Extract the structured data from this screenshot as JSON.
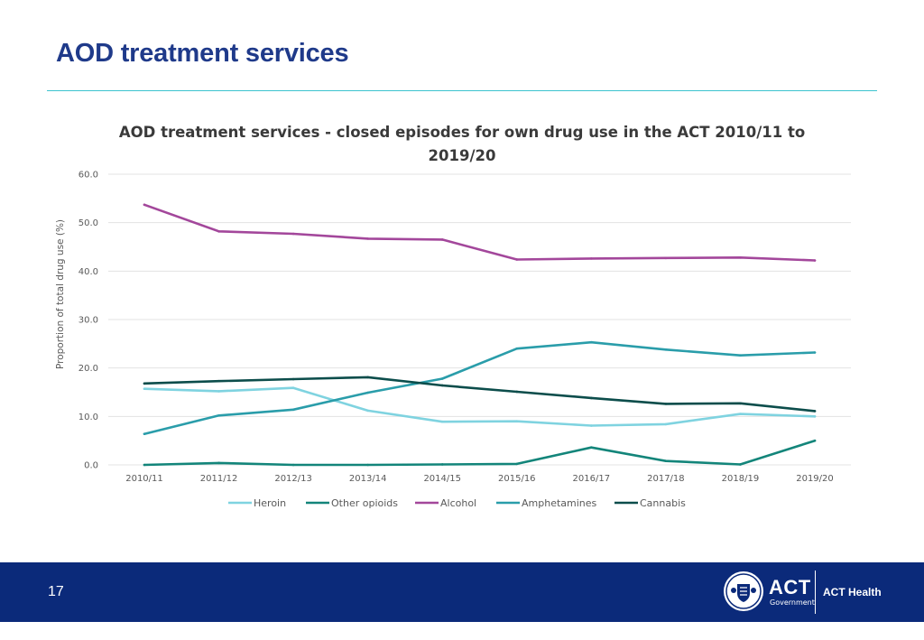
{
  "slide": {
    "title": "AOD treatment services",
    "page_number": "17"
  },
  "logo": {
    "act": "ACT",
    "government": "Government",
    "health": "ACT Health"
  },
  "colors": {
    "title": "#1f3a8a",
    "rule": "#3cc3cf",
    "footer": "#0b2a7a",
    "grid": "#e3e3e3",
    "axis_text": "#595959",
    "chart_title": "#3a3a3a"
  },
  "chart_data": {
    "type": "line",
    "title_lines": [
      "AOD treatment services - closed episodes for own drug use in the ACT 2010/11 to",
      "2019/20"
    ],
    "xlabel": "",
    "ylabel": "Proportion of total drug use (%)",
    "ylim": [
      0,
      60
    ],
    "yticks": [
      "0.0",
      "10.0",
      "20.0",
      "30.0",
      "40.0",
      "50.0",
      "60.0"
    ],
    "grid": true,
    "legend_position": "bottom",
    "categories": [
      "2010/11",
      "2011/12",
      "2012/13",
      "2013/14",
      "2014/15",
      "2015/16",
      "2016/17",
      "2017/18",
      "2018/19",
      "2019/20"
    ],
    "series": [
      {
        "name": "Heroin",
        "color": "#7fd3e0",
        "values": [
          15.7,
          15.2,
          15.9,
          11.2,
          8.9,
          9.0,
          8.1,
          8.4,
          10.5,
          10.0
        ]
      },
      {
        "name": "Other opioids",
        "color": "#13857a",
        "values": [
          0.0,
          0.4,
          0.0,
          0.0,
          0.1,
          0.2,
          3.6,
          0.8,
          0.1,
          5.0
        ]
      },
      {
        "name": "Alcohol",
        "color": "#a3479b",
        "values": [
          53.7,
          48.2,
          47.7,
          46.7,
          46.5,
          42.4,
          42.6,
          42.7,
          42.8,
          42.2
        ]
      },
      {
        "name": "Amphetamines",
        "color": "#2a9daa",
        "values": [
          6.4,
          10.2,
          11.4,
          14.9,
          17.8,
          24.0,
          25.3,
          23.8,
          22.6,
          23.2
        ]
      },
      {
        "name": "Cannabis",
        "color": "#0c4d4b",
        "values": [
          16.8,
          17.3,
          17.7,
          18.1,
          16.4,
          15.1,
          13.8,
          12.6,
          12.7,
          11.1
        ]
      }
    ]
  }
}
